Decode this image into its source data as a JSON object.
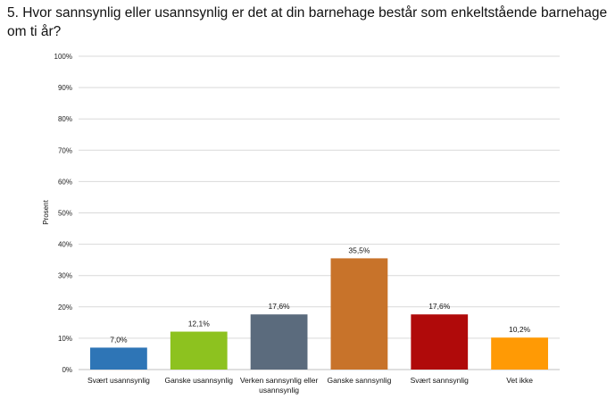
{
  "title_lines": [
    "5. Hvor sannsynlig eller usannsynlig er det at din barnehage består som enkeltstående barnehage",
    "om ti år?"
  ],
  "chart_data": {
    "type": "bar",
    "title": "5. Hvor sannsynlig eller usannsynlig er det at din barnehage består som enkeltstående barnehage om ti år?",
    "xlabel": "",
    "ylabel": "Prosent",
    "ylim": [
      0,
      100
    ],
    "yticks": [
      0,
      10,
      20,
      30,
      40,
      50,
      60,
      70,
      80,
      90,
      100
    ],
    "ytick_labels": [
      "0%",
      "10%",
      "20%",
      "30%",
      "40%",
      "50%",
      "60%",
      "70%",
      "80%",
      "90%",
      "100%"
    ],
    "grid": true,
    "categories": [
      [
        "Svært usannsynlig"
      ],
      [
        "Ganske usannsynlig"
      ],
      [
        "Verken sannsynlig eller",
        "usannsynlig"
      ],
      [
        "Ganske sannsynlig"
      ],
      [
        "Svært sannsynlig"
      ],
      [
        "Vet ikke"
      ]
    ],
    "values": [
      7.0,
      12.1,
      17.6,
      35.5,
      17.6,
      10.2
    ],
    "data_labels": [
      "7,0%",
      "12,1%",
      "17,6%",
      "35,5%",
      "17,6%",
      "10,2%"
    ],
    "colors": [
      "#2e75b6",
      "#8dc21f",
      "#5b6b7d",
      "#c8732a",
      "#b00a0a",
      "#ff9a05"
    ]
  }
}
